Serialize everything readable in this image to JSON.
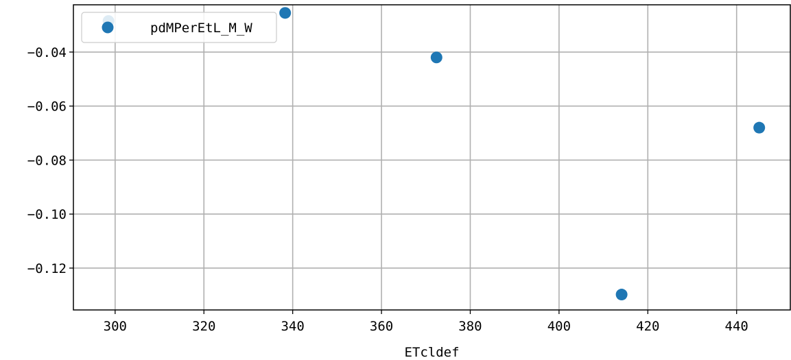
{
  "chart_data": {
    "type": "scatter",
    "title": "",
    "xlabel": "ETcldef",
    "ylabel": "",
    "xlim": [
      290.6,
      452.1
    ],
    "ylim": [
      -0.1355,
      -0.0225
    ],
    "xticks": [
      300,
      320,
      340,
      360,
      380,
      400,
      420,
      440
    ],
    "yticks": [
      -0.12,
      -0.1,
      -0.08,
      -0.06,
      -0.04
    ],
    "xtick_labels": [
      "300",
      "320",
      "340",
      "360",
      "380",
      "400",
      "420",
      "440"
    ],
    "ytick_labels": [
      "−0.12",
      "−0.10",
      "−0.08",
      "−0.06",
      "−0.04"
    ],
    "grid": true,
    "legend_placement": "upper-left",
    "series": [
      {
        "name": "pdMPerEtL_M_W",
        "color": "#1f77b4",
        "points": [
          {
            "x": 298.5,
            "y": -0.0285
          },
          {
            "x": 338.3,
            "y": -0.0255
          },
          {
            "x": 372.4,
            "y": -0.042
          },
          {
            "x": 414.1,
            "y": -0.1298
          },
          {
            "x": 445.1,
            "y": -0.068
          }
        ]
      }
    ]
  }
}
